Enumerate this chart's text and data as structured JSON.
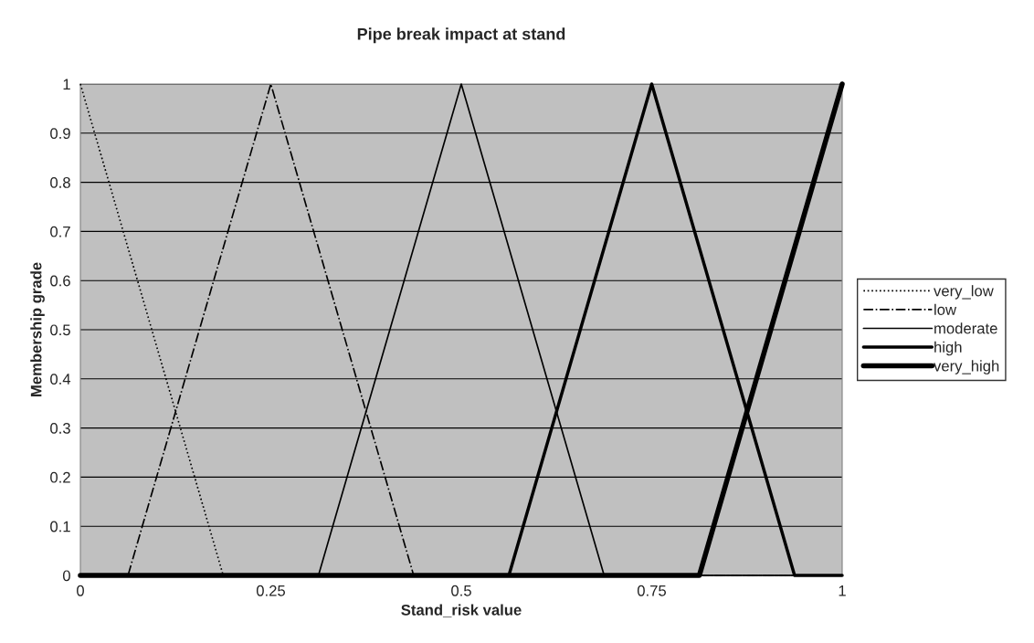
{
  "chart_data": {
    "type": "line",
    "title": "Pipe break impact at stand",
    "xlabel": "Stand_risk value",
    "ylabel": "Membership grade",
    "series": [
      {
        "name": "very_low",
        "color": "#000000",
        "line_style": "dotted",
        "x": [
          0,
          0.1875,
          1
        ],
        "values": [
          1,
          0,
          0
        ]
      },
      {
        "name": "low",
        "color": "#000000",
        "line_style": "dashdot",
        "x": [
          0,
          0.0625,
          0.25,
          0.4375,
          1
        ],
        "values": [
          0,
          0,
          1,
          0,
          0
        ]
      },
      {
        "name": "moderate",
        "color": "#000000",
        "line_style": "solid",
        "x": [
          0,
          0.3125,
          0.5,
          0.6875,
          1
        ],
        "values": [
          0,
          0,
          1,
          0,
          0
        ]
      },
      {
        "name": "high",
        "color": "#000000",
        "line_style": "solid",
        "x": [
          0,
          0.5625,
          0.75,
          0.9375,
          1
        ],
        "values": [
          0,
          0,
          1,
          0,
          0
        ]
      },
      {
        "name": "very_high",
        "color": "#000000",
        "line_style": "solid",
        "x": [
          0,
          0.8125,
          1
        ],
        "values": [
          0,
          0,
          1
        ]
      }
    ],
    "xlim": [
      0,
      1
    ],
    "xticks": [
      0,
      0.25,
      0.5,
      0.75,
      1
    ],
    "ylim": [
      0,
      1
    ],
    "yticks": [
      0,
      0.1,
      0.2,
      0.3,
      0.4,
      0.5,
      0.6,
      0.7,
      0.8,
      0.9,
      1
    ],
    "grid": "y",
    "legend": "right",
    "marker": "none"
  }
}
